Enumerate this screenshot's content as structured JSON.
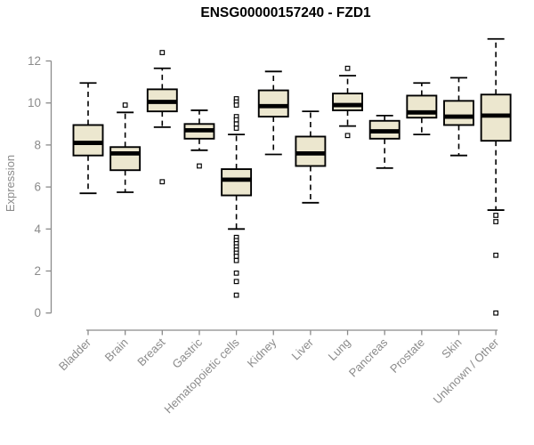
{
  "chart_data": {
    "type": "box",
    "title": "ENSG00000157240 - FZD1",
    "ylabel": "Expression",
    "xlabel": "",
    "yticks": [
      0,
      2,
      4,
      6,
      8,
      10,
      12
    ],
    "ylim": [
      0,
      13.2
    ],
    "grid": false,
    "legend": "none",
    "categories": [
      "Bladder",
      "Brain",
      "Breast",
      "Gastric",
      "Hematopoietic cells",
      "Kidney",
      "Liver",
      "Lung",
      "Pancreas",
      "Prostate",
      "Skin",
      "Unknown / Other"
    ],
    "series": [
      {
        "category": "Bladder",
        "low": 5.7,
        "q1": 7.5,
        "median": 8.1,
        "q3": 8.95,
        "high": 10.95,
        "outliers": []
      },
      {
        "category": "Brain",
        "low": 5.75,
        "q1": 6.8,
        "median": 7.6,
        "q3": 7.9,
        "high": 9.55,
        "outliers": [
          9.9
        ]
      },
      {
        "category": "Breast",
        "low": 8.85,
        "q1": 9.6,
        "median": 10.05,
        "q3": 10.65,
        "high": 11.65,
        "outliers": [
          12.4,
          6.25
        ]
      },
      {
        "category": "Gastric",
        "low": 7.75,
        "q1": 8.3,
        "median": 8.7,
        "q3": 9.0,
        "high": 9.65,
        "outliers": [
          7.0
        ]
      },
      {
        "category": "Hematopoietic cells",
        "low": 4.0,
        "q1": 5.6,
        "median": 6.35,
        "q3": 6.85,
        "high": 8.5,
        "outliers": [
          10.2,
          10.05,
          9.9,
          9.35,
          9.2,
          9.0,
          8.8,
          3.6,
          3.45,
          3.3,
          3.15,
          3.0,
          2.85,
          2.7,
          2.5,
          1.9,
          1.5,
          0.85
        ]
      },
      {
        "category": "Kidney",
        "low": 7.55,
        "q1": 9.35,
        "median": 9.85,
        "q3": 10.6,
        "high": 11.5,
        "outliers": []
      },
      {
        "category": "Liver",
        "low": 5.25,
        "q1": 7.0,
        "median": 7.6,
        "q3": 8.4,
        "high": 9.6,
        "outliers": []
      },
      {
        "category": "Lung",
        "low": 8.9,
        "q1": 9.65,
        "median": 9.9,
        "q3": 10.45,
        "high": 11.3,
        "outliers": [
          11.65,
          8.45
        ]
      },
      {
        "category": "Pancreas",
        "low": 6.9,
        "q1": 8.3,
        "median": 8.65,
        "q3": 9.15,
        "high": 9.4,
        "outliers": []
      },
      {
        "category": "Prostate",
        "low": 8.5,
        "q1": 9.3,
        "median": 9.55,
        "q3": 10.35,
        "high": 10.95,
        "outliers": []
      },
      {
        "category": "Skin",
        "low": 7.5,
        "q1": 8.95,
        "median": 9.35,
        "q3": 10.1,
        "high": 11.2,
        "outliers": []
      },
      {
        "category": "Unknown / Other",
        "low": 4.9,
        "q1": 8.2,
        "median": 9.4,
        "q3": 10.4,
        "high": 13.05,
        "outliers": [
          4.65,
          4.35,
          2.75,
          0.0
        ]
      }
    ],
    "colors": {
      "box_fill": "#ece7cf",
      "box_border": "#000000",
      "median": "#000000",
      "whisker": "#000000",
      "outlier_stroke": "#000000",
      "outlier_fill": "#ffffff",
      "axis": "#8b8b8b",
      "tick_label": "#8b8b8b",
      "title": "#000000",
      "background": "#ffffff"
    }
  }
}
